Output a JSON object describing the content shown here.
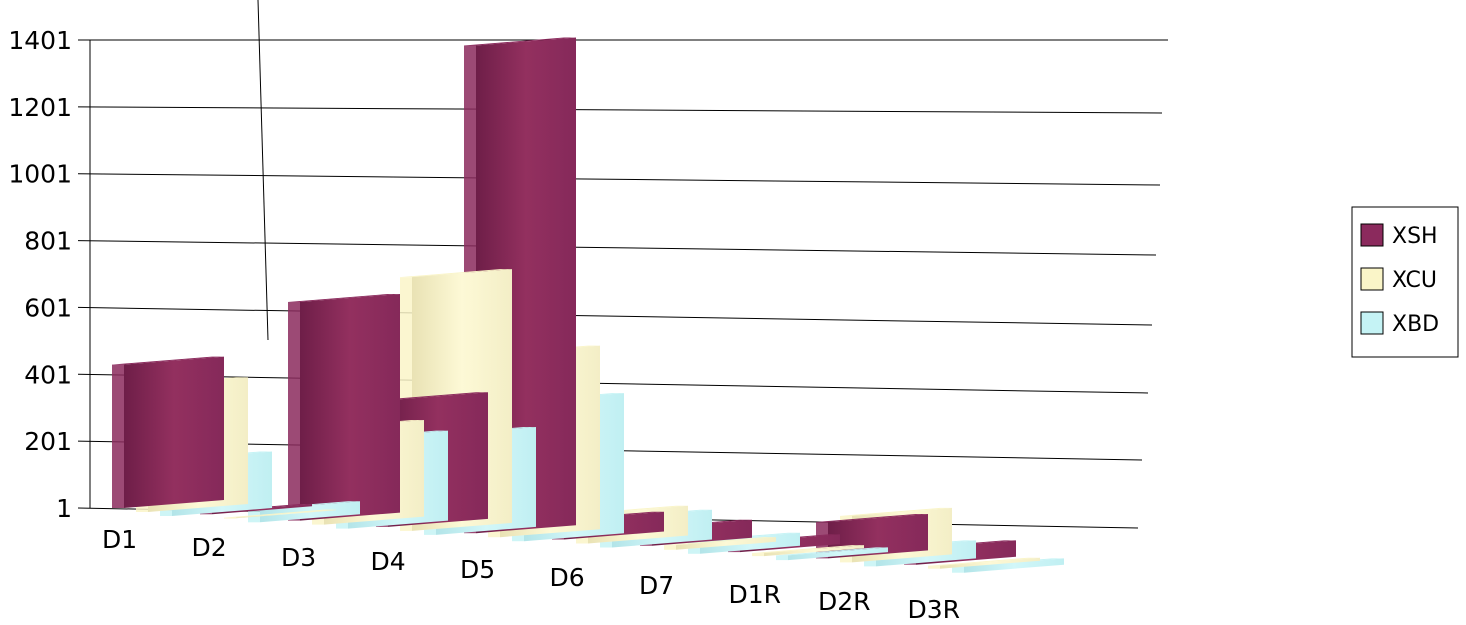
{
  "chart_data": {
    "type": "bar",
    "style": "3d-perspective",
    "categories": [
      "D1",
      "D2",
      "D3",
      "D4",
      "D5",
      "D6",
      "D7",
      "D1R",
      "D2R",
      "D3R"
    ],
    "series": [
      {
        "name": "XSH",
        "color": "#8b2a5d",
        "values": [
          430,
          8,
          655,
          380,
          1460,
          60,
          55,
          30,
          110,
          50
        ]
      },
      {
        "name": "XCU",
        "color": "#faf5c8",
        "values": [
          380,
          3,
          290,
          760,
          550,
          90,
          15,
          10,
          140,
          10
        ]
      },
      {
        "name": "XBD",
        "color": "#c5f3f5",
        "values": [
          170,
          40,
          270,
          300,
          420,
          90,
          40,
          15,
          55,
          20
        ]
      }
    ],
    "yticks": [
      "1",
      "201",
      "401",
      "601",
      "801",
      "1001",
      "1201",
      "1401"
    ],
    "ylim": [
      1,
      1401
    ],
    "grid": true,
    "legend_position": "right"
  }
}
